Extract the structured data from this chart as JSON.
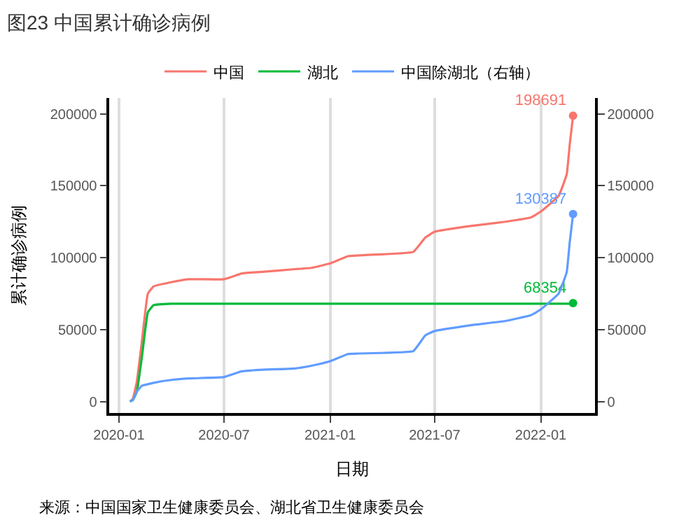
{
  "chart_data": {
    "type": "line",
    "title": "图23 中国累计确诊病例",
    "xlabel": "日期",
    "ylabel": "累计确诊病例",
    "annotations": [
      "来源：中国国家卫生健康委员会、湖北省卫生健康委员会"
    ],
    "x": [
      "2020-01-20",
      "2020-01-25",
      "2020-02-01",
      "2020-02-10",
      "2020-02-20",
      "2020-03-01",
      "2020-04-01",
      "2020-05-01",
      "2020-07-01",
      "2020-08-01",
      "2020-09-01",
      "2020-11-01",
      "2020-12-01",
      "2021-01-01",
      "2021-02-01",
      "2021-05-25",
      "2021-06-15",
      "2021-07-01",
      "2021-09-01",
      "2021-11-01",
      "2021-12-15",
      "2022-01-01",
      "2022-02-01",
      "2022-02-15",
      "2022-02-20",
      "2022-02-26"
    ],
    "series": [
      {
        "name": "中国",
        "color": "#f8766d",
        "values": [
          0,
          2000,
          14000,
          43000,
          75000,
          80000,
          83000,
          85000,
          85000,
          89000,
          90000,
          92000,
          93000,
          96000,
          101000,
          104000,
          114000,
          118000,
          122000,
          125000,
          128000,
          132000,
          143000,
          158000,
          178000,
          198691
        ],
        "value_labels": [
          null,
          null,
          null,
          null,
          null,
          null,
          null,
          null,
          null,
          null,
          null,
          null,
          null,
          null,
          null,
          null,
          null,
          null,
          null,
          null,
          null,
          null,
          null,
          null,
          null,
          "198691"
        ]
      },
      {
        "name": "湖北",
        "color": "#00ba38",
        "values": [
          0,
          1000,
          7000,
          32000,
          62000,
          67000,
          68000,
          68000,
          68000,
          68000,
          68000,
          68000,
          68000,
          68000,
          68000,
          68000,
          68000,
          68000,
          68000,
          68000,
          68000,
          68000,
          68000,
          68000,
          68000,
          68354
        ],
        "value_labels": [
          null,
          null,
          null,
          null,
          null,
          null,
          null,
          null,
          null,
          null,
          null,
          null,
          null,
          null,
          null,
          null,
          null,
          null,
          null,
          null,
          null,
          null,
          null,
          null,
          null,
          "68354"
        ]
      },
      {
        "name": "中国除湖北（右轴）",
        "color": "#619cff",
        "axis": "y2",
        "values": [
          0,
          1000,
          7000,
          11000,
          12000,
          13000,
          15000,
          16000,
          17000,
          21000,
          22000,
          23000,
          25000,
          28000,
          33000,
          35000,
          46000,
          49000,
          53000,
          56000,
          60000,
          64000,
          75000,
          90000,
          110000,
          130387
        ],
        "value_labels": [
          null,
          null,
          null,
          null,
          null,
          null,
          null,
          null,
          null,
          null,
          null,
          null,
          null,
          null,
          null,
          null,
          null,
          null,
          null,
          null,
          null,
          null,
          null,
          null,
          null,
          "130387"
        ]
      }
    ],
    "xlim": [
      "2019-12-15",
      "2022-04-05"
    ],
    "xticks": [
      "2020-01",
      "2020-07",
      "2021-01",
      "2021-07",
      "2022-01"
    ],
    "ylim": [
      -8000,
      211000
    ],
    "yticks": [
      0,
      50000,
      100000,
      150000,
      200000
    ],
    "y2lim": [
      -8000,
      211000
    ],
    "y2ticks": [
      0,
      50000,
      100000,
      150000,
      200000
    ],
    "grid": "x",
    "legend": "top"
  }
}
